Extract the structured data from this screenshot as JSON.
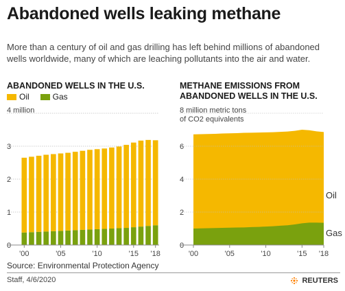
{
  "headline": "Abandoned wells leaking methane",
  "deck": "More than a century of oil and gas drilling has left behind millions of abandoned wells worldwide, many of which are leaching pollutants into the air and water.",
  "source": "Source: Environmental Protection Agency",
  "credit": "Staff, 4/6/2020",
  "brand": "REUTERS",
  "colors": {
    "oil": "#f5b800",
    "gas": "#7aa10e",
    "grid": "#bfbfbf",
    "axis": "#888888"
  },
  "chart_data": [
    {
      "type": "bar",
      "title": "ABANDONED WELLS IN THE U.S.",
      "unit_label": "4 million",
      "legend": [
        "Oil",
        "Gas"
      ],
      "x": [
        2000,
        2001,
        2002,
        2003,
        2004,
        2005,
        2006,
        2007,
        2008,
        2009,
        2010,
        2011,
        2012,
        2013,
        2014,
        2015,
        2016,
        2017,
        2018
      ],
      "x_tick_labels": [
        {
          "x": 2000,
          "label": "'00"
        },
        {
          "x": 2005,
          "label": "'05"
        },
        {
          "x": 2010,
          "label": "'10"
        },
        {
          "x": 2015,
          "label": "'15"
        },
        {
          "x": 2018,
          "label": "'18"
        }
      ],
      "y_ticks": [
        {
          "value": 0,
          "label": "0"
        },
        {
          "value": 1,
          "label": "1"
        },
        {
          "value": 2,
          "label": "2"
        },
        {
          "value": 3,
          "label": "3"
        },
        {
          "value": 4,
          "label": ""
        }
      ],
      "ylim": [
        0,
        4
      ],
      "stacked": true,
      "series": [
        {
          "name": "Gas",
          "values": [
            0.38,
            0.39,
            0.4,
            0.41,
            0.42,
            0.43,
            0.44,
            0.45,
            0.46,
            0.47,
            0.48,
            0.49,
            0.5,
            0.51,
            0.52,
            0.54,
            0.56,
            0.58,
            0.6
          ]
        },
        {
          "name": "Oil",
          "values": [
            2.27,
            2.29,
            2.31,
            2.33,
            2.34,
            2.35,
            2.36,
            2.38,
            2.4,
            2.42,
            2.43,
            2.44,
            2.46,
            2.48,
            2.52,
            2.57,
            2.61,
            2.61,
            2.58
          ]
        }
      ],
      "grid": true
    },
    {
      "type": "area",
      "title": "METHANE EMISSIONS FROM ABANDONED WELLS IN THE U.S.",
      "unit_label_lines": [
        "8 million metric tons",
        "of CO2 equivalents"
      ],
      "x": [
        2000,
        2001,
        2002,
        2003,
        2004,
        2005,
        2006,
        2007,
        2008,
        2009,
        2010,
        2011,
        2012,
        2013,
        2014,
        2015,
        2016,
        2017,
        2018
      ],
      "x_tick_labels": [
        {
          "x": 2000,
          "label": "'00"
        },
        {
          "x": 2005,
          "label": "'05"
        },
        {
          "x": 2010,
          "label": "'10"
        },
        {
          "x": 2015,
          "label": "'15"
        },
        {
          "x": 2018,
          "label": "'18"
        }
      ],
      "y_ticks": [
        {
          "value": 0,
          "label": "0"
        },
        {
          "value": 2,
          "label": "2"
        },
        {
          "value": 4,
          "label": "4"
        },
        {
          "value": 6,
          "label": "6"
        },
        {
          "value": 8,
          "label": ""
        }
      ],
      "ylim": [
        0,
        8
      ],
      "stacked": true,
      "series": [
        {
          "name": "Gas",
          "values": [
            1.0,
            1.01,
            1.02,
            1.03,
            1.04,
            1.05,
            1.06,
            1.07,
            1.09,
            1.1,
            1.12,
            1.14,
            1.17,
            1.2,
            1.25,
            1.32,
            1.36,
            1.36,
            1.35
          ]
        },
        {
          "name": "Oil",
          "values": [
            5.72,
            5.72,
            5.72,
            5.72,
            5.73,
            5.73,
            5.73,
            5.74,
            5.73,
            5.73,
            5.72,
            5.71,
            5.7,
            5.69,
            5.68,
            5.68,
            5.61,
            5.54,
            5.51
          ]
        }
      ],
      "series_labels": [
        "Oil",
        "Gas"
      ],
      "grid": true
    }
  ]
}
